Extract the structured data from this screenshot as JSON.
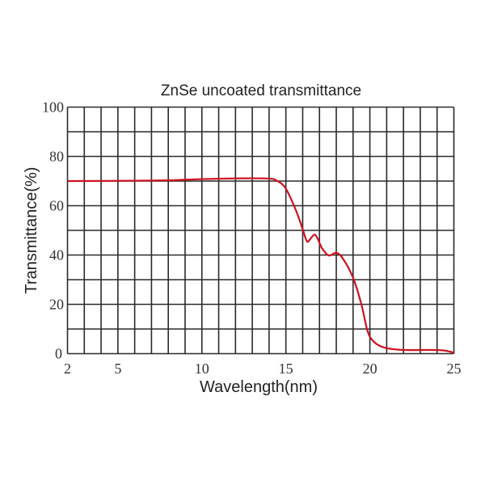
{
  "chart_data": {
    "type": "line",
    "title": "ZnSe uncoated transmittance",
    "xlabel": "Wavelength(nm)",
    "ylabel": "Transmittance(%)",
    "xlim": [
      2,
      25
    ],
    "ylim": [
      0,
      100
    ],
    "xticks": [
      2,
      5,
      10,
      15,
      20,
      25
    ],
    "yticks": [
      0,
      20,
      40,
      60,
      80,
      100
    ],
    "grid": true,
    "grid_x_step": 1,
    "grid_y_step": 10,
    "series": [
      {
        "color": "#d0101e",
        "x": [
          2,
          5,
          8,
          10,
          12.4,
          14.0,
          14.5,
          15.0,
          15.6,
          16.0,
          16.25,
          16.45,
          16.7,
          16.9,
          17.15,
          17.55,
          18.0,
          18.4,
          19.0,
          19.5,
          19.87,
          20.27,
          20.9,
          22.0,
          23.6,
          24.4,
          25
        ],
        "y": [
          70.0,
          70.1,
          70.3,
          70.8,
          71.1,
          71.0,
          70.0,
          66.9,
          58.1,
          50.5,
          45.6,
          46.5,
          48.3,
          46.5,
          42.8,
          39.8,
          40.9,
          38.5,
          30.8,
          19.9,
          9.0,
          4.6,
          2.4,
          1.5,
          1.5,
          1.3,
          0.4
        ]
      }
    ]
  }
}
